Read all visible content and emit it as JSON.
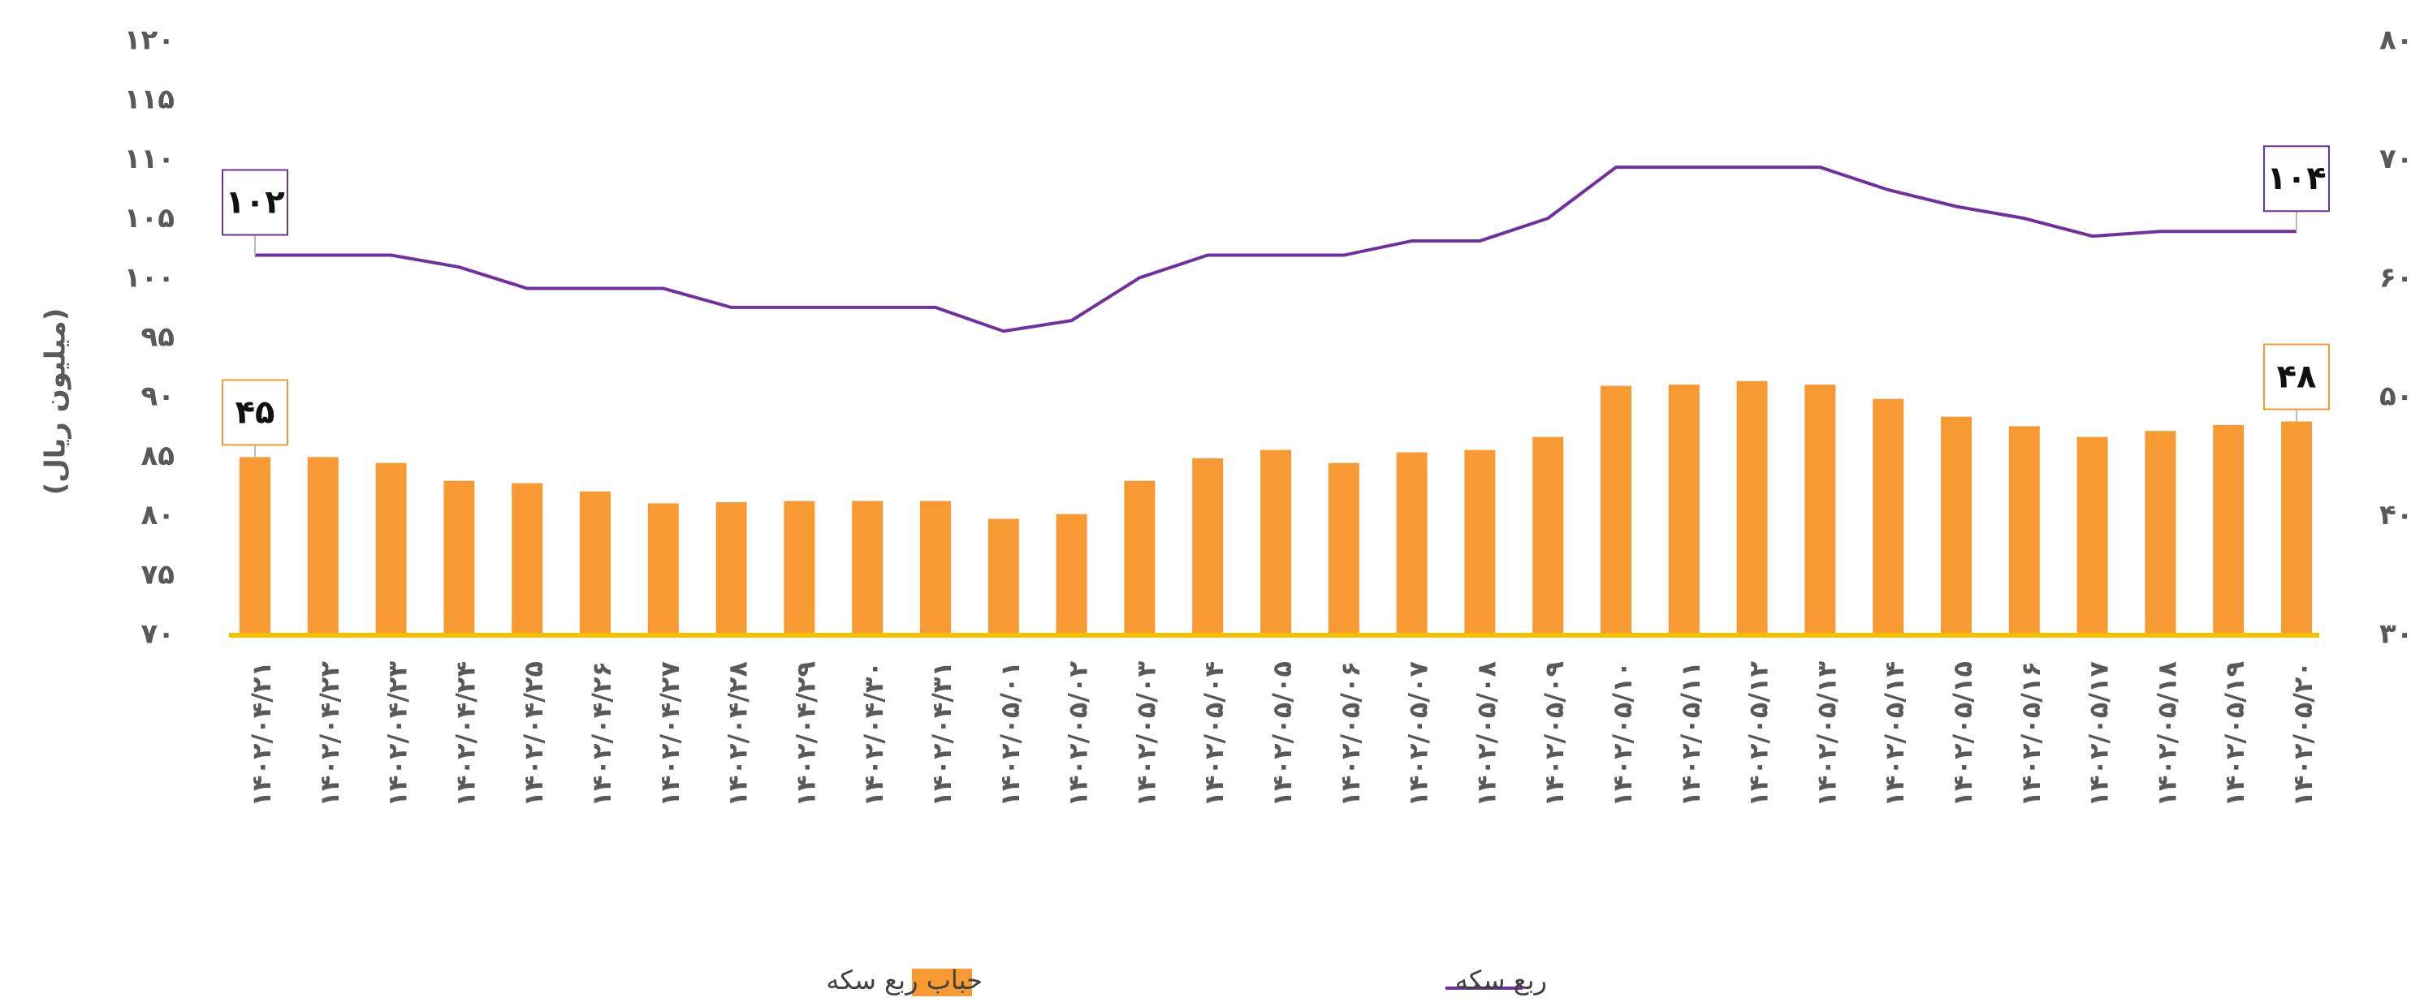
{
  "chart_data": {
    "type": "bar_line",
    "y_axis_label": "(میلیون ریال)",
    "categories": [
      "۱۴۰۲/۰۴/۲۱",
      "۱۴۰۲/۰۴/۲۲",
      "۱۴۰۲/۰۴/۲۳",
      "۱۴۰۲/۰۴/۲۴",
      "۱۴۰۲/۰۴/۲۵",
      "۱۴۰۲/۰۴/۲۶",
      "۱۴۰۲/۰۴/۲۷",
      "۱۴۰۲/۰۴/۲۸",
      "۱۴۰۲/۰۴/۲۹",
      "۱۴۰۲/۰۴/۳۰",
      "۱۴۰۲/۰۴/۳۱",
      "۱۴۰۲/۰۵/۰۱",
      "۱۴۰۲/۰۵/۰۲",
      "۱۴۰۲/۰۵/۰۳",
      "۱۴۰۲/۰۵/۰۴",
      "۱۴۰۲/۰۵/۰۵",
      "۱۴۰۲/۰۵/۰۶",
      "۱۴۰۲/۰۵/۰۷",
      "۱۴۰۲/۰۵/۰۸",
      "۱۴۰۲/۰۵/۰۹",
      "۱۴۰۲/۰۵/۱۰",
      "۱۴۰۲/۰۵/۱۱",
      "۱۴۰۲/۰۵/۱۲",
      "۱۴۰۲/۰۵/۱۳",
      "۱۴۰۲/۰۵/۱۴",
      "۱۴۰۲/۰۵/۱۵",
      "۱۴۰۲/۰۵/۱۶",
      "۱۴۰۲/۰۵/۱۷",
      "۱۴۰۲/۰۵/۱۸",
      "۱۴۰۲/۰۵/۱۹",
      "۱۴۰۲/۰۵/۲۰"
    ],
    "series": [
      {
        "name": "حباب ربع سکه",
        "type": "bar",
        "axis": "y2",
        "color": "#f79a33",
        "values": [
          45,
          45,
          44.5,
          43,
          42.8,
          42.1,
          41.1,
          41.2,
          41.3,
          41.3,
          41.3,
          39.8,
          40.2,
          43,
          44.9,
          45.6,
          44.5,
          45.4,
          45.6,
          46.7,
          51,
          51.1,
          51.4,
          51.1,
          49.9,
          48.4,
          47.6,
          46.7,
          47.2,
          47.7,
          48
        ],
        "value_labels": [
          "۴۵",
          null,
          null,
          null,
          null,
          null,
          null,
          null,
          null,
          null,
          null,
          null,
          null,
          null,
          null,
          null,
          null,
          null,
          null,
          null,
          null,
          null,
          null,
          null,
          null,
          null,
          null,
          null,
          null,
          null,
          "۴۸"
        ]
      },
      {
        "name": "ربع سکه",
        "type": "line",
        "color": "#7030a0",
        "values": [
          102,
          102,
          102,
          101,
          99.2,
          99.2,
          99.2,
          97.6,
          97.6,
          97.6,
          97.6,
          95.6,
          96.5,
          100.1,
          102,
          102,
          102,
          103.2,
          103.2,
          105.1,
          109.4,
          109.4,
          109.4,
          109.4,
          107.5,
          106.1,
          105.1,
          103.6,
          104,
          104,
          104
        ],
        "value_labels": [
          "۱۰۲",
          null,
          null,
          null,
          null,
          null,
          null,
          null,
          null,
          null,
          null,
          null,
          null,
          null,
          null,
          null,
          null,
          null,
          null,
          null,
          null,
          null,
          null,
          null,
          null,
          null,
          null,
          null,
          null,
          null,
          "۱۰۴"
        ]
      }
    ],
    "ylim": [
      70,
      120
    ],
    "yticks": [
      {
        "value": 70,
        "label": "۷۰"
      },
      {
        "value": 75,
        "label": "۷۵"
      },
      {
        "value": 80,
        "label": "۸۰"
      },
      {
        "value": 85,
        "label": "۸۵"
      },
      {
        "value": 90,
        "label": "۹۰"
      },
      {
        "value": 95,
        "label": "۹۵"
      },
      {
        "value": 100,
        "label": "۱۰۰"
      },
      {
        "value": 105,
        "label": "۱۰۵"
      },
      {
        "value": 110,
        "label": "۱۱۰"
      },
      {
        "value": 115,
        "label": "۱۱۵"
      },
      {
        "value": 120,
        "label": "۱۲۰"
      }
    ],
    "y2lim": [
      30,
      80
    ],
    "y2ticks": [
      {
        "value": 30,
        "label": "۳۰"
      },
      {
        "value": 40,
        "label": "۴۰"
      },
      {
        "value": 50,
        "label": "۵۰"
      },
      {
        "value": 60,
        "label": "۶۰"
      },
      {
        "value": 70,
        "label": "۷۰"
      },
      {
        "value": 80,
        "label": "۸۰"
      }
    ],
    "axis_color": "#f2c200"
  }
}
